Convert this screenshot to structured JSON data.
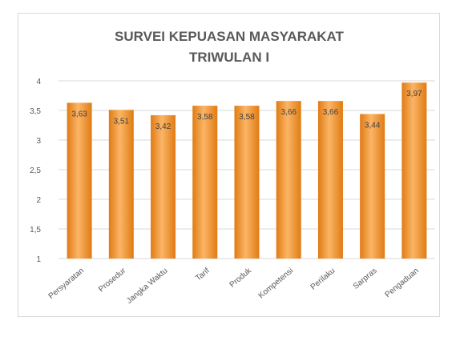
{
  "chart_data": {
    "type": "bar",
    "title_lines": [
      "SURVEI KEPUASAN MASYARAKAT",
      "TRIWULAN I"
    ],
    "categories": [
      "Persyaratan",
      "Prosedur",
      "Jangka Waktu",
      "Tarif",
      "Produk",
      "Kompetensi",
      "Perilaku",
      "Sarpras",
      "Pengaduan"
    ],
    "values": [
      3.63,
      3.51,
      3.42,
      3.58,
      3.58,
      3.66,
      3.66,
      3.44,
      3.97
    ],
    "data_labels": [
      "3,63",
      "3,51",
      "3,42",
      "3,58",
      "3,58",
      "3,66",
      "3,66",
      "3,44",
      "3,97"
    ],
    "ylim": [
      1,
      4
    ],
    "y_ticks": [
      1,
      1.5,
      2,
      2.5,
      3,
      3.5,
      4
    ],
    "y_tick_labels": [
      "1",
      "1,5",
      "2",
      "2,5",
      "3",
      "3,5",
      "4"
    ],
    "grid": true,
    "legend": "none",
    "colors": {
      "bar": "#f5962e",
      "bar_light": "#fbb566",
      "bar_dark": "#e07b14",
      "grid": "#d9d9d9",
      "text": "#595959"
    }
  }
}
